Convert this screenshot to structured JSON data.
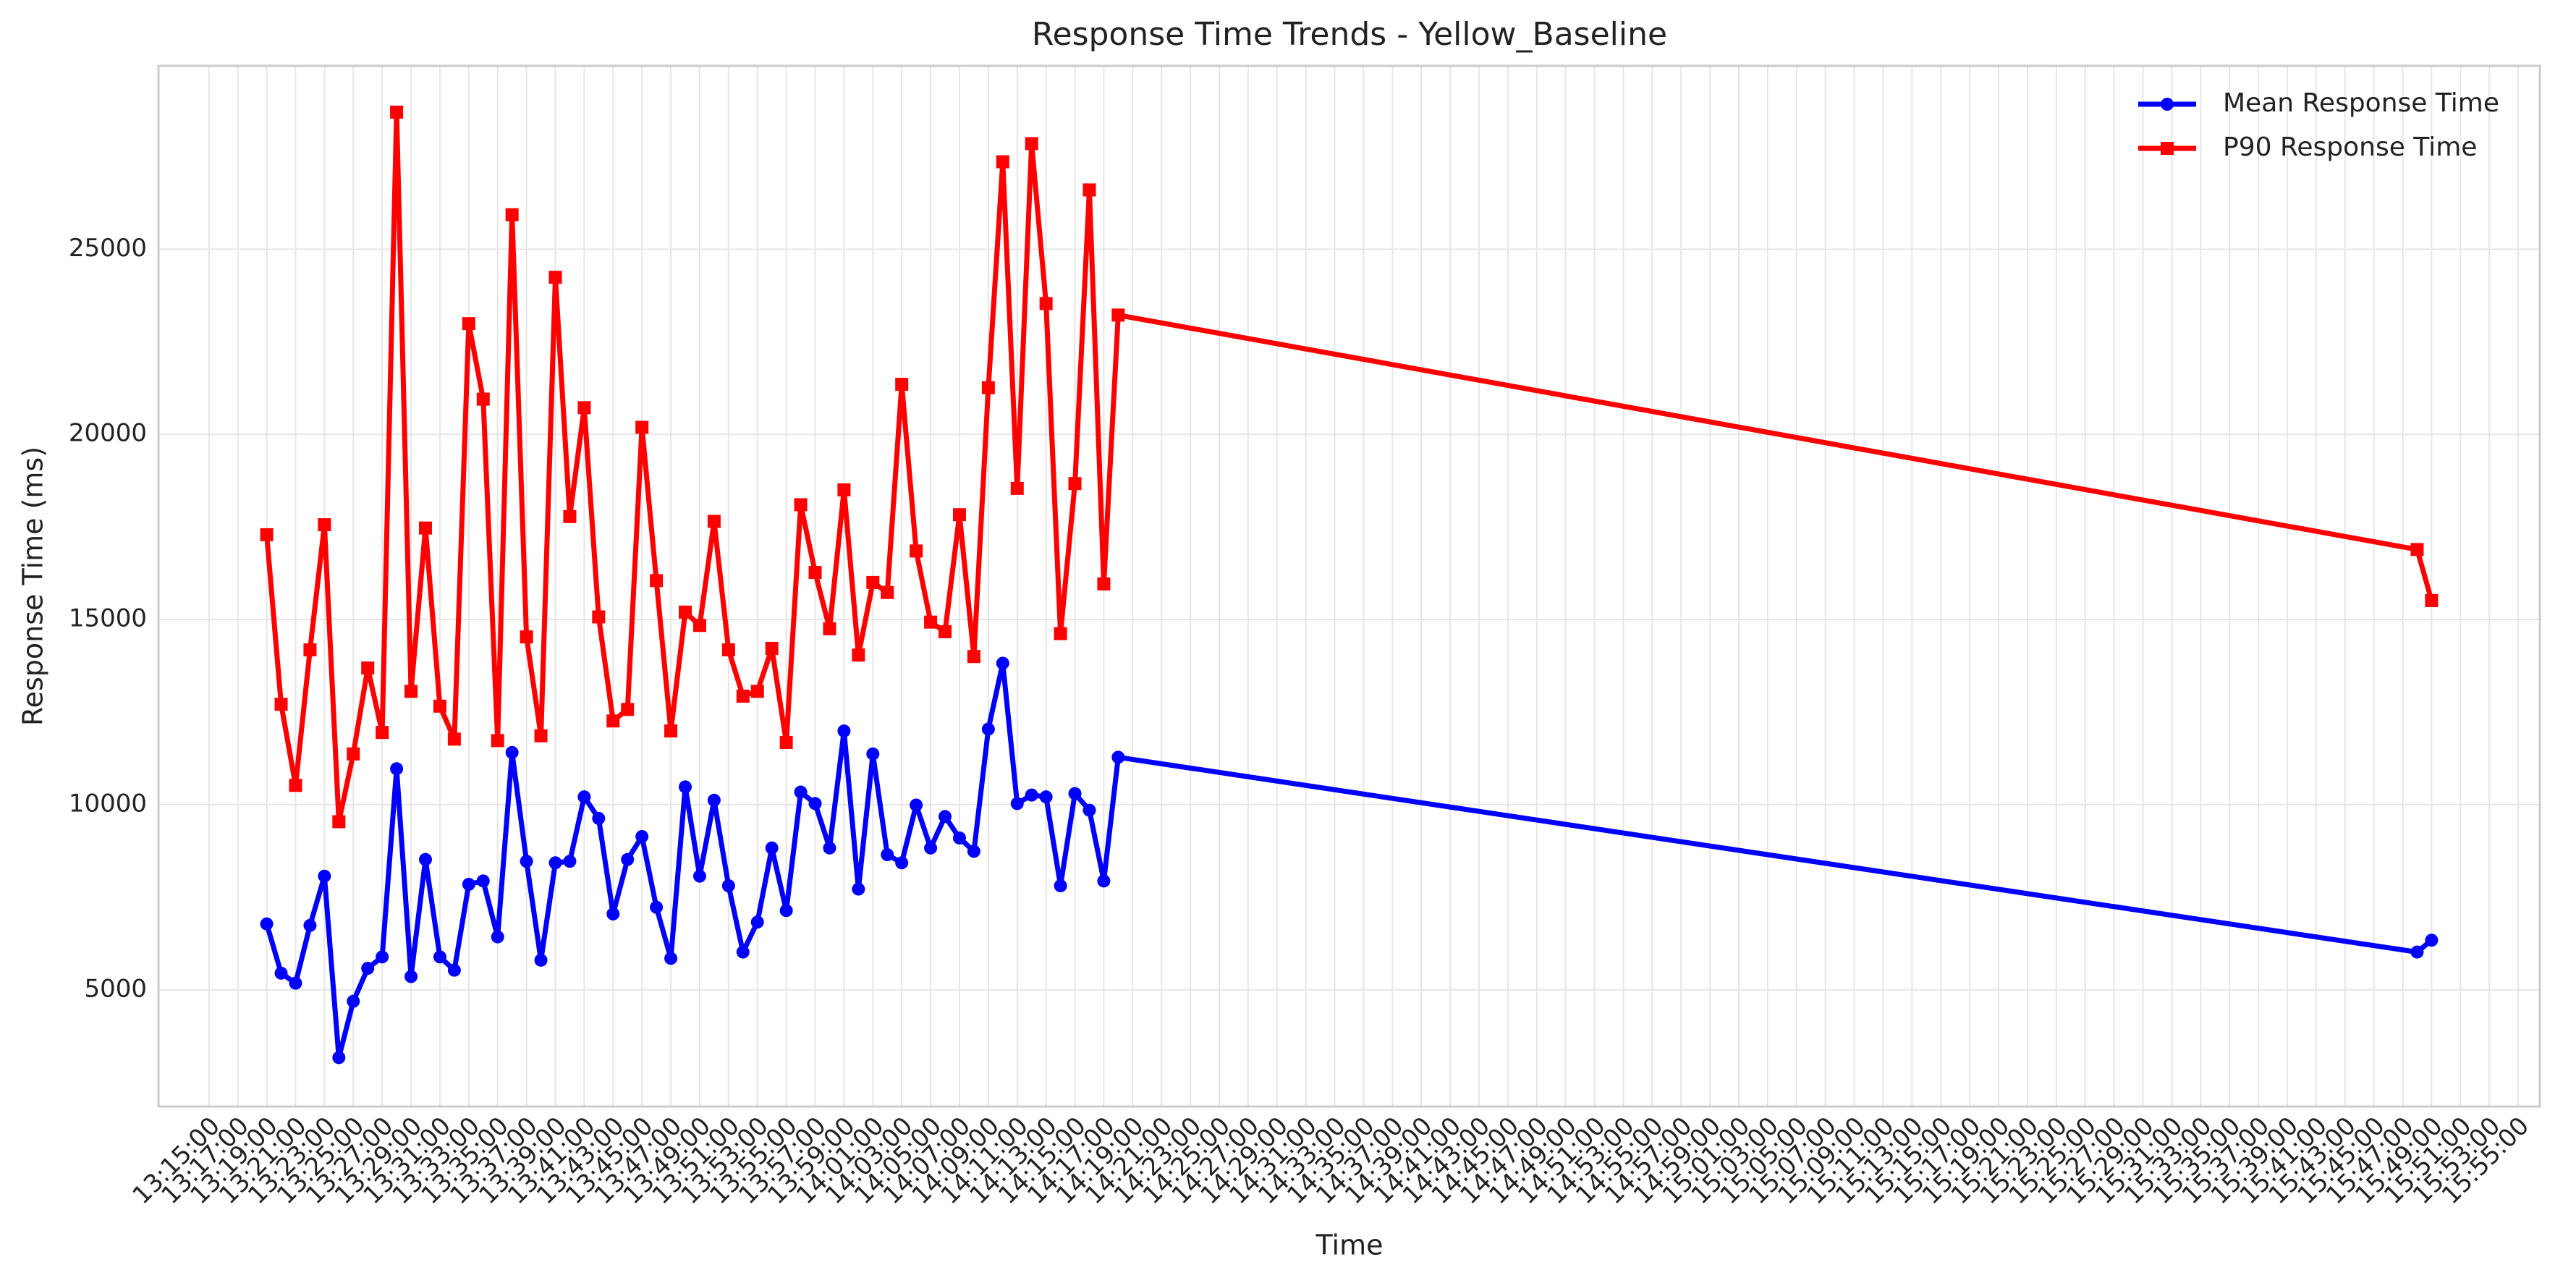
{
  "chart_data": {
    "type": "line",
    "title": "Response Time Trends - Yellow_Baseline",
    "xlabel": "Time",
    "ylabel": "Response Time (ms)",
    "x": [
      "13:19:00",
      "13:20:00",
      "13:21:00",
      "13:22:00",
      "13:23:00",
      "13:24:00",
      "13:25:00",
      "13:26:00",
      "13:27:00",
      "13:28:00",
      "13:29:00",
      "13:30:00",
      "13:31:00",
      "13:32:00",
      "13:33:00",
      "13:34:00",
      "13:35:00",
      "13:36:00",
      "13:37:00",
      "13:38:00",
      "13:39:00",
      "13:40:00",
      "13:41:00",
      "13:42:00",
      "13:43:00",
      "13:44:00",
      "13:45:00",
      "13:46:00",
      "13:47:00",
      "13:48:00",
      "13:49:00",
      "13:50:00",
      "13:51:00",
      "13:52:00",
      "13:53:00",
      "13:54:00",
      "13:55:00",
      "13:56:00",
      "13:57:00",
      "13:58:00",
      "13:59:00",
      "14:00:00",
      "14:01:00",
      "14:02:00",
      "14:03:00",
      "14:04:00",
      "14:05:00",
      "14:06:00",
      "14:07:00",
      "14:08:00",
      "14:09:00",
      "14:10:00",
      "14:11:00",
      "14:12:00",
      "14:13:00",
      "14:14:00",
      "14:15:00",
      "14:16:00",
      "14:17:00",
      "14:18:00",
      "15:48:00",
      "15:49:00"
    ],
    "series": [
      {
        "name": "Mean Response Time",
        "color": "#0000ff",
        "marker": "circle",
        "values": [
          6780,
          5450,
          5180,
          6740,
          8070,
          3170,
          4690,
          5580,
          5890,
          10970,
          5360,
          8520,
          5890,
          5530,
          7850,
          7940,
          6430,
          11410,
          8470,
          5800,
          8430,
          8470,
          10210,
          9630,
          7050,
          8520,
          9140,
          7230,
          5850,
          10480,
          8070,
          10120,
          7810,
          6020,
          6830,
          8830,
          7140,
          10340,
          10030,
          8830,
          11990,
          7720,
          11370,
          8650,
          8430,
          9990,
          8830,
          9680,
          9100,
          8740,
          12040,
          13820,
          10030,
          10260,
          10210,
          7810,
          10300,
          9850,
          7940,
          11280,
          6020,
          6340
        ]
      },
      {
        "name": "P90 Response Time",
        "color": "#ff0000",
        "marker": "square",
        "values": [
          17290,
          12710,
          10520,
          14180,
          17560,
          9540,
          11370,
          13690,
          11950,
          28700,
          13060,
          17470,
          12660,
          11770,
          22990,
          20950,
          11730,
          25930,
          14530,
          11860,
          24240,
          17780,
          20720,
          15070,
          12260,
          12570,
          20190,
          16050,
          11990,
          15200,
          14840,
          17650,
          14180,
          12930,
          13060,
          14220,
          11680,
          18100,
          16270,
          14750,
          18500,
          14040,
          16000,
          15730,
          21350,
          16850,
          14930,
          14670,
          17830,
          14000,
          21260,
          27360,
          18540,
          27850,
          23530,
          14620,
          18670,
          26600,
          15960,
          23220,
          16890,
          15510
        ]
      }
    ],
    "xlim": [
      "13:11:30",
      "15:56:30"
    ],
    "xticks": [
      "13:15:00",
      "13:17:00",
      "13:19:00",
      "13:21:00",
      "13:23:00",
      "13:25:00",
      "13:27:00",
      "13:29:00",
      "13:31:00",
      "13:33:00",
      "13:35:00",
      "13:37:00",
      "13:39:00",
      "13:41:00",
      "13:43:00",
      "13:45:00",
      "13:47:00",
      "13:49:00",
      "13:51:00",
      "13:53:00",
      "13:55:00",
      "13:57:00",
      "13:59:00",
      "14:01:00",
      "14:03:00",
      "14:05:00",
      "14:07:00",
      "14:09:00",
      "14:11:00",
      "14:13:00",
      "14:15:00",
      "14:17:00",
      "14:19:00",
      "14:21:00",
      "14:23:00",
      "14:25:00",
      "14:27:00",
      "14:29:00",
      "14:31:00",
      "14:33:00",
      "14:35:00",
      "14:37:00",
      "14:39:00",
      "14:41:00",
      "14:43:00",
      "14:45:00",
      "14:47:00",
      "14:49:00",
      "14:51:00",
      "14:53:00",
      "14:55:00",
      "14:57:00",
      "14:59:00",
      "15:01:00",
      "15:03:00",
      "15:05:00",
      "15:07:00",
      "15:09:00",
      "15:11:00",
      "15:13:00",
      "15:15:00",
      "15:17:00",
      "15:19:00",
      "15:21:00",
      "15:23:00",
      "15:25:00",
      "15:27:00",
      "15:29:00",
      "15:31:00",
      "15:33:00",
      "15:35:00",
      "15:37:00",
      "15:39:00",
      "15:41:00",
      "15:43:00",
      "15:45:00",
      "15:47:00",
      "15:49:00",
      "15:51:00",
      "15:53:00",
      "15:55:00"
    ],
    "ylim": [
      1850,
      29950
    ],
    "yticks": [
      5000,
      10000,
      15000,
      20000,
      25000
    ],
    "grid": true,
    "legend": "upper right"
  }
}
